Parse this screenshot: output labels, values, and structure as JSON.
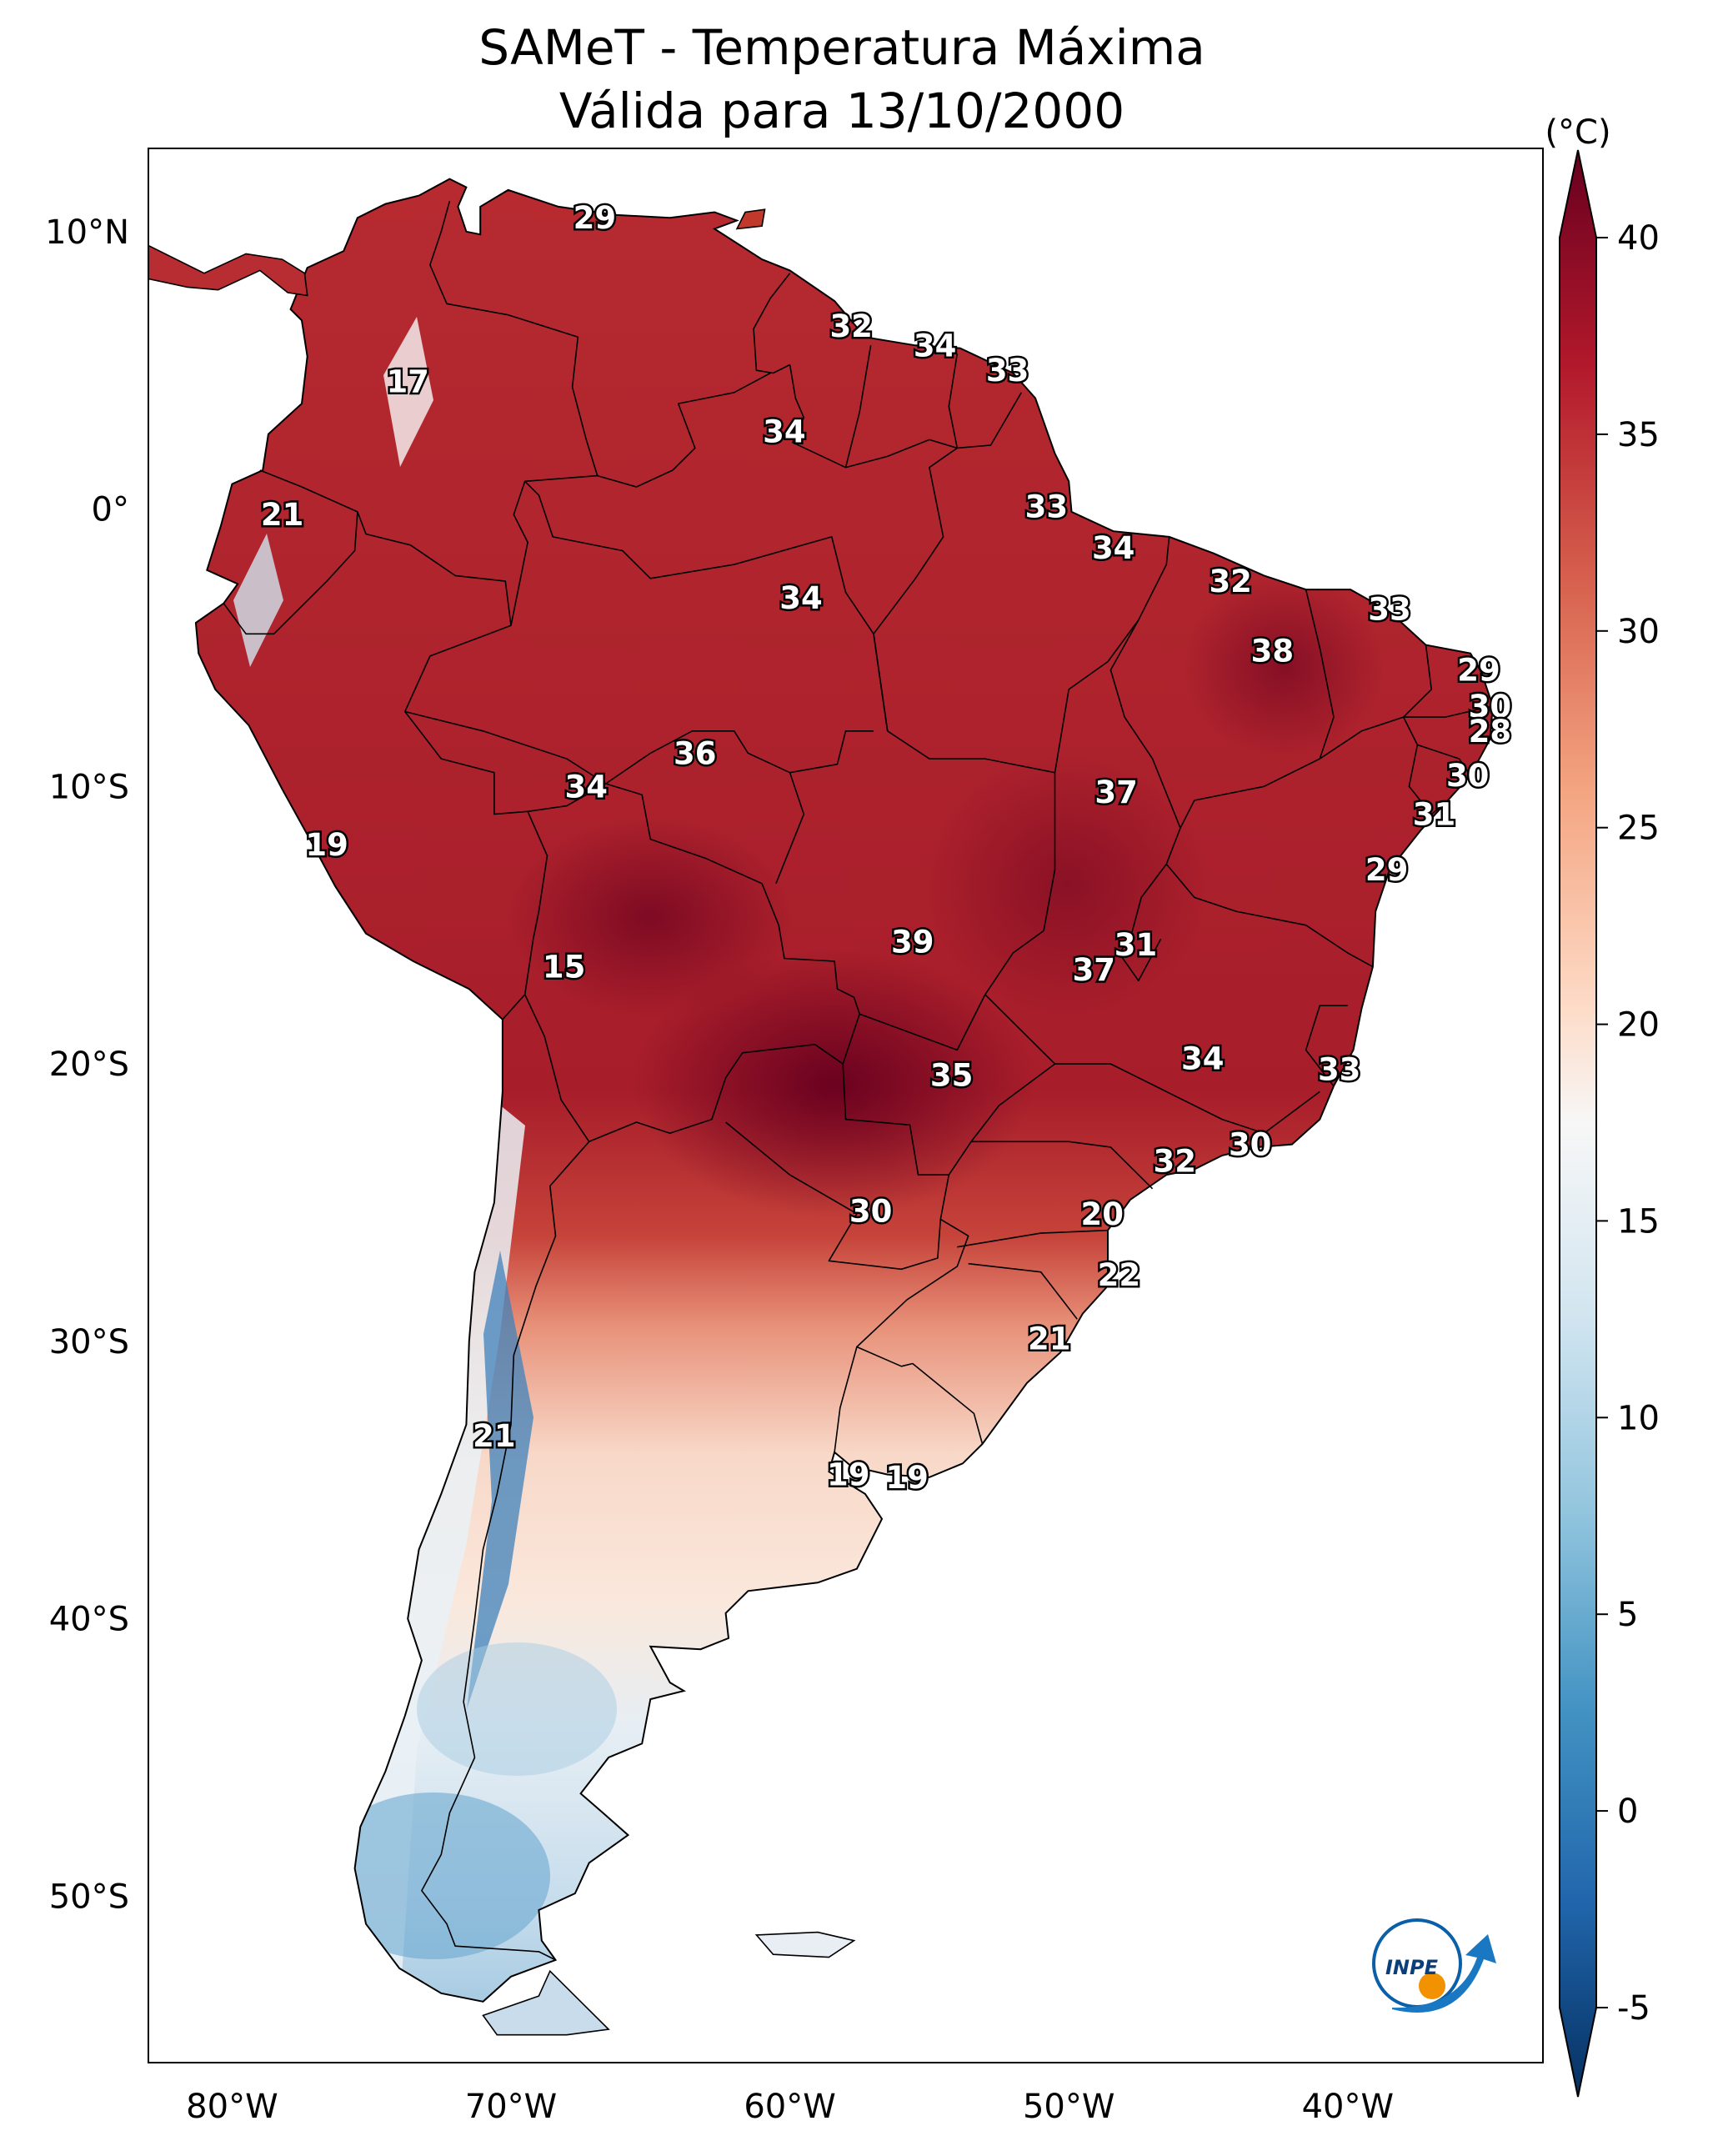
{
  "title": {
    "line1": "SAMeT - Temperatura Máxima",
    "line2": "Válida para 13/10/2000"
  },
  "colorbar": {
    "unit": "(°C)",
    "ticks": [
      "40",
      "35",
      "30",
      "25",
      "20",
      "15",
      "10",
      "5",
      "0",
      "-5"
    ]
  },
  "axes": {
    "lat_ticks": [
      "10°N",
      "0°",
      "10°S",
      "20°S",
      "30°S",
      "40°S",
      "50°S"
    ],
    "lon_ticks": [
      "80°W",
      "70°W",
      "60°W",
      "50°W",
      "40°W"
    ]
  },
  "logo": {
    "text": "INPE"
  },
  "labels": [
    {
      "value": "29",
      "lon": -67.0,
      "lat": 10.5
    },
    {
      "value": "32",
      "lon": -57.8,
      "lat": 6.6
    },
    {
      "value": "34",
      "lon": -54.8,
      "lat": 5.9
    },
    {
      "value": "33",
      "lon": -52.2,
      "lat": 5.0
    },
    {
      "value": "17",
      "lon": -73.7,
      "lat": 4.6
    },
    {
      "value": "34",
      "lon": -60.2,
      "lat": 2.8
    },
    {
      "value": "21",
      "lon": -78.2,
      "lat": -0.2
    },
    {
      "value": "33",
      "lon": -50.8,
      "lat": 0.1
    },
    {
      "value": "34",
      "lon": -48.4,
      "lat": -1.4
    },
    {
      "value": "32",
      "lon": -44.2,
      "lat": -2.6
    },
    {
      "value": "34",
      "lon": -59.6,
      "lat": -3.2
    },
    {
      "value": "33",
      "lon": -38.5,
      "lat": -3.6
    },
    {
      "value": "38",
      "lon": -42.7,
      "lat": -5.1
    },
    {
      "value": "29",
      "lon": -35.3,
      "lat": -5.8
    },
    {
      "value": "30",
      "lon": -34.9,
      "lat": -7.1
    },
    {
      "value": "28",
      "lon": -34.9,
      "lat": -8.0
    },
    {
      "value": "36",
      "lon": -63.4,
      "lat": -8.8
    },
    {
      "value": "30",
      "lon": -35.7,
      "lat": -9.6
    },
    {
      "value": "34",
      "lon": -67.3,
      "lat": -10.0
    },
    {
      "value": "37",
      "lon": -48.3,
      "lat": -10.2
    },
    {
      "value": "31",
      "lon": -36.9,
      "lat": -11.0
    },
    {
      "value": "19",
      "lon": -76.6,
      "lat": -12.1
    },
    {
      "value": "29",
      "lon": -38.6,
      "lat": -13.0
    },
    {
      "value": "39",
      "lon": -55.6,
      "lat": -15.6
    },
    {
      "value": "31",
      "lon": -47.6,
      "lat": -15.7
    },
    {
      "value": "37",
      "lon": -49.1,
      "lat": -16.6
    },
    {
      "value": "15",
      "lon": -68.1,
      "lat": -16.5
    },
    {
      "value": "34",
      "lon": -45.2,
      "lat": -19.8
    },
    {
      "value": "33",
      "lon": -40.3,
      "lat": -20.2
    },
    {
      "value": "35",
      "lon": -54.2,
      "lat": -20.4
    },
    {
      "value": "30",
      "lon": -43.5,
      "lat": -22.9
    },
    {
      "value": "32",
      "lon": -46.2,
      "lat": -23.5
    },
    {
      "value": "30",
      "lon": -57.1,
      "lat": -25.3
    },
    {
      "value": "20",
      "lon": -48.8,
      "lat": -25.4
    },
    {
      "value": "22",
      "lon": -48.2,
      "lat": -27.6
    },
    {
      "value": "21",
      "lon": -50.7,
      "lat": -29.9
    },
    {
      "value": "21",
      "lon": -70.6,
      "lat": -33.4
    },
    {
      "value": "19",
      "lon": -57.9,
      "lat": -34.8
    },
    {
      "value": "19",
      "lon": -55.8,
      "lat": -34.9
    }
  ],
  "map_extent": {
    "lon_min": -83,
    "lon_max": -33,
    "lat_min": -56,
    "lat_max": 13
  }
}
